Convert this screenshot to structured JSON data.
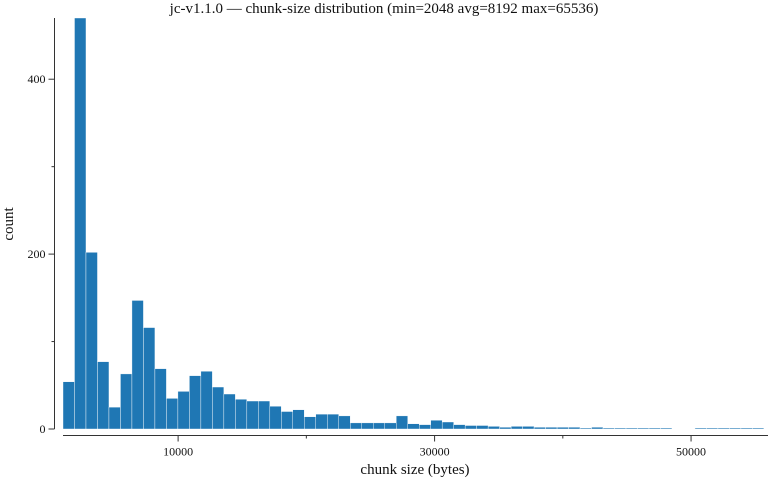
{
  "colors": {
    "bar": "#1f77b4",
    "bar_edge": "#ffffff",
    "axis": "#333333",
    "text": "#111111"
  },
  "chart_data": {
    "type": "bar",
    "title": "jc-v1.1.0 — chunk-size distribution (min=2048 avg=8192 max=65536)",
    "xlabel": "chunk size (bytes)",
    "ylabel": "count",
    "xlim": [
      1024,
      56000
    ],
    "ylim": [
      0,
      470
    ],
    "x_major_ticks": [
      10000,
      30000,
      50000
    ],
    "x_major_tick_labels": [
      "10000",
      "30000",
      "50000"
    ],
    "x_minor_ticks": [
      20000,
      40000
    ],
    "y_major_ticks": [
      0,
      200,
      400
    ],
    "y_major_tick_labels": [
      "0",
      "200",
      "400"
    ],
    "y_minor_ticks": [
      100,
      300
    ],
    "grid": false,
    "bin_start": 1024,
    "bin_width": 896,
    "values": [
      54,
      470,
      202,
      77,
      25,
      63,
      147,
      116,
      69,
      35,
      43,
      61,
      66,
      48,
      40,
      34,
      32,
      32,
      26,
      20,
      22,
      14,
      17,
      17,
      15,
      7,
      7,
      7,
      7,
      15,
      6,
      5,
      10,
      8,
      5,
      4,
      4,
      3,
      2,
      3,
      3,
      2,
      2,
      2,
      2,
      1,
      2,
      1,
      1,
      1,
      1,
      1,
      1,
      0,
      0,
      1,
      1,
      1,
      1,
      1,
      1,
      0,
      0,
      0,
      0,
      1,
      0,
      0,
      0,
      0,
      1,
      0,
      1,
      0,
      1,
      1,
      1,
      1,
      1,
      1,
      1,
      1,
      1,
      0,
      0,
      0,
      0,
      0,
      0,
      0,
      0,
      0,
      1,
      0,
      0,
      0,
      0,
      0,
      0,
      0,
      0,
      0,
      0,
      1
    ]
  }
}
